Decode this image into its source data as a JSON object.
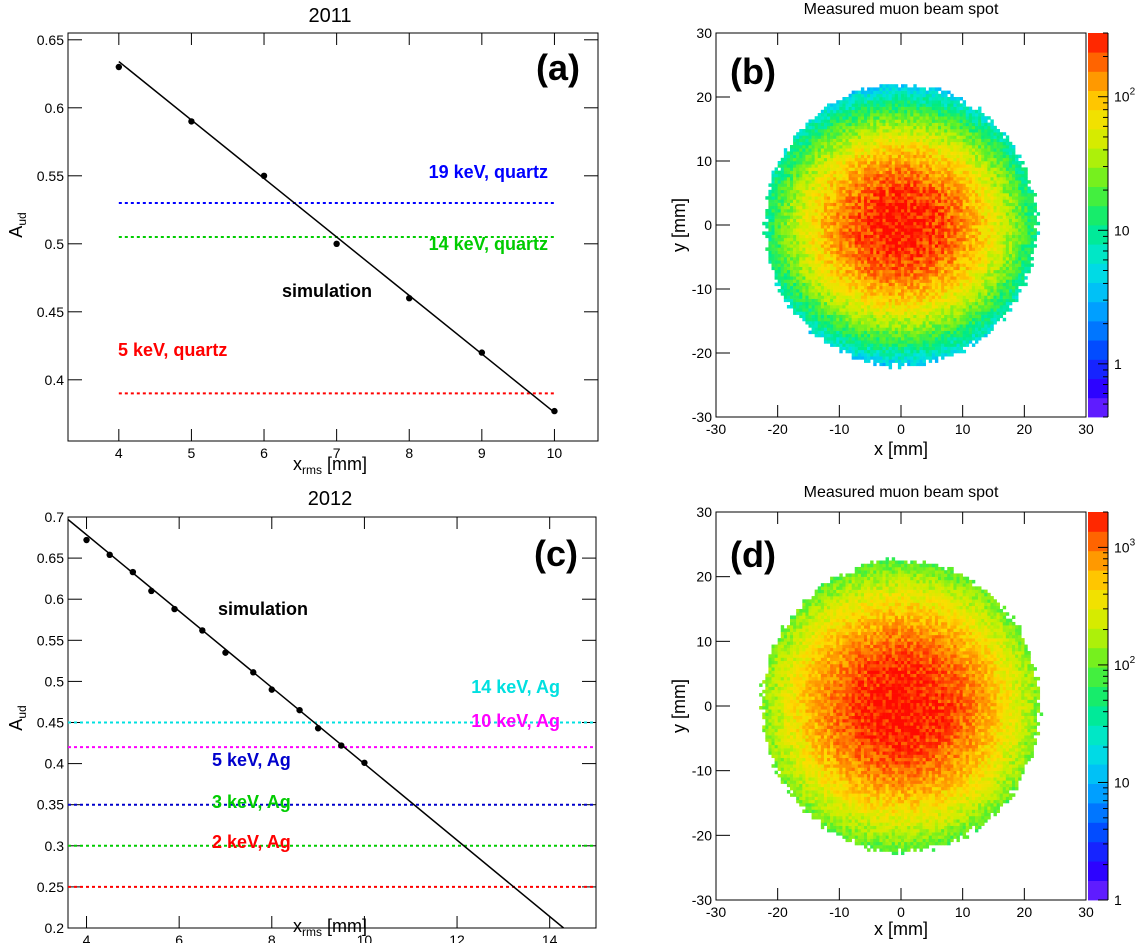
{
  "chart_data": [
    {
      "id": "a",
      "type": "scatter",
      "title": "2011",
      "panel_label": "(a)",
      "xlabel_main": "x",
      "xlabel_sub": "rms",
      "xlabel_unit": "[mm]",
      "ylabel_main": "A",
      "ylabel_sub": "ud",
      "xlim": [
        3.3,
        10.6
      ],
      "ylim": [
        0.355,
        0.655
      ],
      "xticks": [
        4,
        5,
        6,
        7,
        8,
        9,
        10
      ],
      "yticks": [
        0.4,
        0.45,
        0.5,
        0.55,
        0.6,
        0.65
      ],
      "xtick_labels": [
        "4",
        "5",
        "6",
        "7",
        "8",
        "9",
        "10"
      ],
      "ytick_labels": [
        "0.4",
        "0.45",
        "0.5",
        "0.55",
        "0.6",
        "0.65"
      ],
      "points": {
        "x": [
          4,
          5,
          6,
          7,
          8,
          9,
          10
        ],
        "y": [
          0.63,
          0.59,
          0.55,
          0.5,
          0.46,
          0.42,
          0.377
        ]
      },
      "fit_line": {
        "x": [
          4,
          10
        ],
        "y": [
          0.634,
          0.376
        ]
      },
      "fit_label": "simulation",
      "references": [
        {
          "name": "19 keV, quartz",
          "y": 0.53,
          "x_range": [
            4,
            10
          ],
          "color": "#0000ff"
        },
        {
          "name": "14 keV, quartz",
          "y": 0.505,
          "x_range": [
            4,
            10
          ],
          "color": "#00cc00"
        },
        {
          "name": "5 keV, quartz",
          "y": 0.39,
          "x_range": [
            4,
            10
          ],
          "color": "#ff0000"
        }
      ]
    },
    {
      "id": "b",
      "type": "heatmap",
      "title": "Measured muon beam spot",
      "panel_label": "(b)",
      "xlabel": "x [mm]",
      "ylabel": "y [mm]",
      "xlim": [
        -30,
        30
      ],
      "ylim": [
        -30,
        30
      ],
      "xticks": [
        -30,
        -20,
        -10,
        0,
        10,
        20,
        30
      ],
      "yticks": [
        -30,
        -20,
        -10,
        0,
        10,
        20,
        30
      ],
      "xtick_labels": [
        "-30",
        "-20",
        "-10",
        "0",
        "10",
        "20",
        "30"
      ],
      "ytick_labels": [
        "-30",
        "-20",
        "-10",
        "0",
        "10",
        "20",
        "30"
      ],
      "color_scale": "log",
      "zlim": [
        0.4,
        300
      ],
      "colorbar_ticks": [
        {
          "value": 1,
          "base": "1",
          "exp": ""
        },
        {
          "value": 10,
          "base": "10",
          "exp": ""
        },
        {
          "value": 100,
          "base": "10",
          "exp": "2"
        }
      ],
      "spot": {
        "cx": 0,
        "cy": 0,
        "sigma_x": 8.5,
        "sigma_y": 7.5,
        "peak": 300,
        "radius": 21.5,
        "noise": 0.85
      }
    },
    {
      "id": "c",
      "type": "scatter",
      "title": "2012",
      "panel_label": "(c)",
      "xlabel_main": "x",
      "xlabel_sub": "rms",
      "xlabel_unit": "[mm]",
      "ylabel_main": "A",
      "ylabel_sub": "ud",
      "xlim": [
        3.6,
        15
      ],
      "ylim": [
        0.2,
        0.7
      ],
      "xticks": [
        4,
        6,
        8,
        10,
        12,
        14
      ],
      "yticks": [
        0.2,
        0.25,
        0.3,
        0.35,
        0.4,
        0.45,
        0.5,
        0.55,
        0.6,
        0.65,
        0.7
      ],
      "xtick_labels": [
        "4",
        "6",
        "8",
        "10",
        "12",
        "14"
      ],
      "ytick_labels": [
        "0.2",
        "0.25",
        "0.3",
        "0.35",
        "0.4",
        "0.45",
        "0.5",
        "0.55",
        "0.6",
        "0.65",
        "0.7"
      ],
      "points": {
        "x": [
          4,
          4.5,
          5,
          5.4,
          5.9,
          6.5,
          7,
          7.6,
          8,
          8.6,
          9,
          9.5,
          10
        ],
        "y": [
          0.672,
          0.654,
          0.633,
          0.61,
          0.588,
          0.562,
          0.535,
          0.511,
          0.49,
          0.465,
          0.443,
          0.422,
          0.401
        ]
      },
      "fit_line": {
        "x": [
          3.6,
          14.3
        ],
        "y": [
          0.697,
          0.2
        ]
      },
      "fit_label": "simulation",
      "references": [
        {
          "name": "14 keV, Ag",
          "y": 0.45,
          "x_range": [
            3.6,
            15
          ],
          "color": "#00e0e0"
        },
        {
          "name": "10 keV, Ag",
          "y": 0.42,
          "x_range": [
            3.6,
            15
          ],
          "color": "#ff00ff"
        },
        {
          "name": "5 keV, Ag",
          "y": 0.35,
          "x_range": [
            3.6,
            15
          ],
          "color": "#0000cc"
        },
        {
          "name": "3 keV, Ag",
          "y": 0.3,
          "x_range": [
            3.6,
            15
          ],
          "color": "#00cc00"
        },
        {
          "name": "2 keV, Ag",
          "y": 0.25,
          "x_range": [
            3.6,
            15
          ],
          "color": "#ff0000"
        }
      ]
    },
    {
      "id": "d",
      "type": "heatmap",
      "title": "Measured muon beam spot",
      "panel_label": "(d)",
      "xlabel": "x [mm]",
      "ylabel": "y [mm]",
      "xlim": [
        -30,
        30
      ],
      "ylim": [
        -30,
        30
      ],
      "xticks": [
        -30,
        -20,
        -10,
        0,
        10,
        20,
        30
      ],
      "yticks": [
        -30,
        -20,
        -10,
        0,
        10,
        20,
        30
      ],
      "xtick_labels": [
        "-30",
        "-20",
        "-10",
        "0",
        "10",
        "20",
        "30"
      ],
      "ytick_labels": [
        "-30",
        "-20",
        "-10",
        "0",
        "10",
        "20",
        "30"
      ],
      "color_scale": "log",
      "zlim": [
        1,
        2000
      ],
      "colorbar_ticks": [
        {
          "value": 1,
          "base": "1",
          "exp": ""
        },
        {
          "value": 10,
          "base": "10",
          "exp": ""
        },
        {
          "value": 100,
          "base": "10",
          "exp": "2"
        },
        {
          "value": 1000,
          "base": "10",
          "exp": "3"
        }
      ],
      "spot": {
        "cx": 0,
        "cy": 0,
        "sigma_x": 9.5,
        "sigma_y": 9,
        "peak": 2000,
        "radius": 22,
        "noise": 0.45
      }
    }
  ]
}
